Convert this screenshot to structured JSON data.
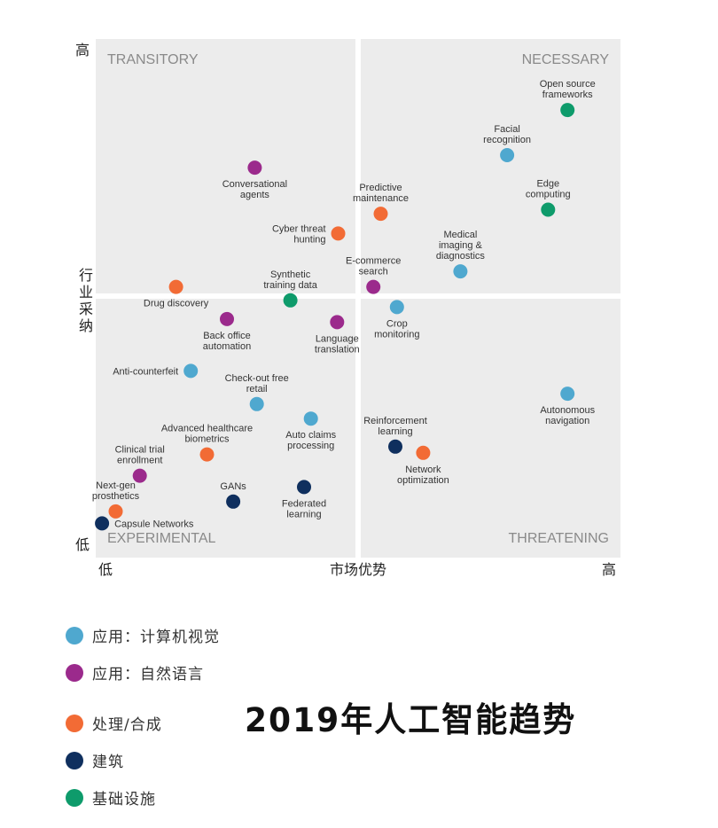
{
  "chart_data": {
    "type": "scatter",
    "title": "2019年人工智能趋势",
    "xlabel": "市场优势",
    "ylabel": [
      "行",
      "业",
      "采",
      "纳"
    ],
    "x_low": "低",
    "x_high": "高",
    "y_low": "低",
    "y_high": "高",
    "xlim": [
      0,
      10
    ],
    "ylim": [
      0,
      10
    ],
    "quadrants": {
      "top_left": "TRANSITORY",
      "top_right": "NECESSARY",
      "bottom_left": "EXPERIMENTAL",
      "bottom_right": "THREATENING"
    },
    "categories": [
      {
        "id": "cv",
        "name": "应用：计算机视觉",
        "color": "#4fa8cf"
      },
      {
        "id": "nlp",
        "name": "应用：自然语言",
        "color": "#9b2a8c"
      },
      {
        "id": "proc",
        "name": "处理/合成",
        "color": "#f26b35"
      },
      {
        "id": "arch",
        "name": "建筑",
        "color": "#0f2f5e"
      },
      {
        "id": "infra",
        "name": "基础设施",
        "color": "#0e9b6b"
      }
    ],
    "points": [
      {
        "label": [
          "Open source",
          "frameworks"
        ],
        "cat": "infra",
        "x": 8.99,
        "y": 8.63,
        "lp": "above"
      },
      {
        "label": [
          "Facial",
          "recognition"
        ],
        "cat": "cv",
        "x": 7.84,
        "y": 7.76,
        "lp": "above"
      },
      {
        "label": [
          "Edge",
          "computing"
        ],
        "cat": "infra",
        "x": 8.62,
        "y": 6.71,
        "lp": "above"
      },
      {
        "label": [
          "Conversational",
          "agents"
        ],
        "cat": "nlp",
        "x": 3.03,
        "y": 7.52,
        "lp": "below"
      },
      {
        "label": [
          "Predictive",
          "maintenance"
        ],
        "cat": "proc",
        "x": 5.43,
        "y": 6.63,
        "lp": "above"
      },
      {
        "label": [
          "Cyber threat",
          "hunting"
        ],
        "cat": "proc",
        "x": 4.62,
        "y": 6.25,
        "lp": "left"
      },
      {
        "label": [
          "Medical",
          "imaging &",
          "diagnostics"
        ],
        "cat": "cv",
        "x": 6.95,
        "y": 5.52,
        "lp": "above"
      },
      {
        "label": [
          "E-commerce",
          "search"
        ],
        "cat": "nlp",
        "x": 5.29,
        "y": 5.22,
        "lp": "above"
      },
      {
        "label": [
          "Synthetic",
          "training data"
        ],
        "cat": "infra",
        "x": 3.71,
        "y": 4.96,
        "lp": "above"
      },
      {
        "label": [
          "Drug discovery"
        ],
        "cat": "proc",
        "x": 1.53,
        "y": 5.22,
        "lp": "below"
      },
      {
        "label": [
          "Crop",
          "monitoring"
        ],
        "cat": "cv",
        "x": 5.74,
        "y": 4.83,
        "lp": "below"
      },
      {
        "label": [
          "Back office",
          "automation"
        ],
        "cat": "nlp",
        "x": 2.5,
        "y": 4.6,
        "lp": "below"
      },
      {
        "label": [
          "Language",
          "translation"
        ],
        "cat": "nlp",
        "x": 4.6,
        "y": 4.54,
        "lp": "below"
      },
      {
        "label": [
          "Anti-counterfeit"
        ],
        "cat": "cv",
        "x": 1.81,
        "y": 3.6,
        "lp": "left"
      },
      {
        "label": [
          "Autonomous",
          "navigation"
        ],
        "cat": "cv",
        "x": 8.99,
        "y": 3.16,
        "lp": "below"
      },
      {
        "label": [
          "Check-out free",
          "retail"
        ],
        "cat": "cv",
        "x": 3.07,
        "y": 2.96,
        "lp": "above"
      },
      {
        "label": [
          "Auto claims",
          "processing"
        ],
        "cat": "cv",
        "x": 4.1,
        "y": 2.68,
        "lp": "below"
      },
      {
        "label": [
          "Reinforcement",
          "learning"
        ],
        "cat": "arch",
        "x": 5.71,
        "y": 2.14,
        "lp": "above"
      },
      {
        "label": [
          "Network",
          "optimization"
        ],
        "cat": "proc",
        "x": 6.24,
        "y": 2.02,
        "lp": "below"
      },
      {
        "label": [
          "Advanced healthcare",
          "biometrics"
        ],
        "cat": "proc",
        "x": 2.12,
        "y": 1.99,
        "lp": "above"
      },
      {
        "label": [
          "Clinical trial",
          "enrollment"
        ],
        "cat": "nlp",
        "x": 0.84,
        "y": 1.58,
        "lp": "above"
      },
      {
        "label": [
          "GANs"
        ],
        "cat": "arch",
        "x": 2.62,
        "y": 1.08,
        "lp": "above"
      },
      {
        "label": [
          "Federated",
          "learning"
        ],
        "cat": "arch",
        "x": 3.97,
        "y": 1.36,
        "lp": "below"
      },
      {
        "label": [
          "Next-gen",
          "prosthetics"
        ],
        "cat": "proc",
        "x": 0.38,
        "y": 0.89,
        "lp": "above"
      },
      {
        "label": [
          "Capsule Networks"
        ],
        "cat": "arch",
        "x": 0.12,
        "y": 0.66,
        "lp": "right"
      }
    ]
  },
  "legend": [
    {
      "label": "应用：计算机视觉",
      "color": "#4fa8cf"
    },
    {
      "label": "应用：自然语言",
      "color": "#9b2a8c"
    },
    {
      "label": "处理/合成",
      "color": "#f26b35"
    },
    {
      "label": "建筑",
      "color": "#0f2f5e"
    },
    {
      "label": "基础设施",
      "color": "#0e9b6b"
    }
  ]
}
